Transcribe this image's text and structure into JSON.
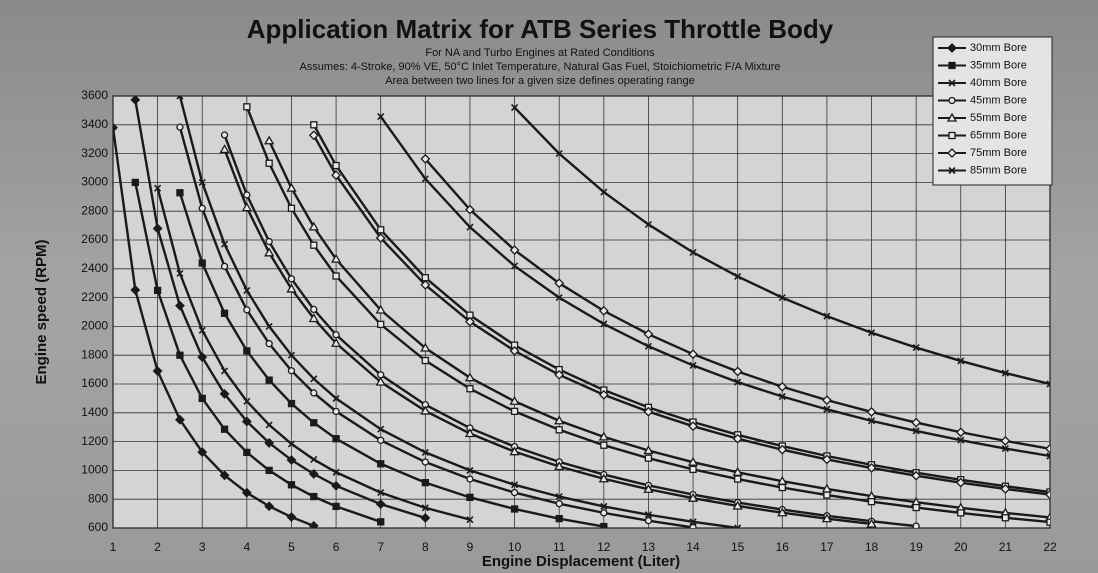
{
  "chart_data": {
    "type": "line",
    "title": "Application Matrix for ATB Series Throttle Body",
    "subtitle_lines": [
      "For NA and Turbo Engines at Rated Conditions",
      "Assumes: 4-Stroke, 90% VE, 50°C Inlet Temperature, Natural Gas Fuel, Stoichiometric F/A Mixture",
      "Area between two lines for a given size defines operating range"
    ],
    "xlabel": "Engine Displacement (Liter)",
    "ylabel": "Engine speed (RPM)",
    "xlim": [
      1,
      22
    ],
    "ylim": [
      600,
      3600
    ],
    "xticks": [
      1,
      2,
      3,
      4,
      5,
      6,
      7,
      8,
      9,
      10,
      11,
      12,
      13,
      14,
      15,
      16,
      17,
      18,
      19,
      20,
      21,
      22
    ],
    "yticks": [
      600,
      800,
      1000,
      1200,
      1400,
      1600,
      1800,
      2000,
      2200,
      2400,
      2600,
      2800,
      3000,
      3200,
      3400,
      3600
    ],
    "grid": true,
    "legend": "top-right",
    "x": [
      1,
      1.5,
      2,
      2.5,
      3,
      3.5,
      4,
      4.5,
      5,
      5.5,
      6,
      7,
      8,
      9,
      10,
      11,
      12,
      13,
      14,
      15,
      16,
      17,
      18,
      19,
      20,
      21,
      22
    ],
    "series": [
      {
        "name": "30mm Bore",
        "color": "#1a1a1a",
        "marker": "diamond",
        "filled": true,
        "curves": [
          [
            3380,
            2253,
            1690,
            1352,
            1127,
            966,
            845,
            751,
            676,
            615,
            null,
            null,
            null,
            null,
            null,
            null,
            null,
            null,
            null,
            null,
            null,
            null,
            null,
            null,
            null,
            null,
            null
          ],
          [
            null,
            3573,
            2680,
            2144,
            1787,
            1531,
            1340,
            1191,
            1072,
            975,
            893,
            766,
            670,
            null,
            null,
            null,
            null,
            null,
            null,
            null,
            null,
            null,
            null,
            null,
            null,
            null,
            null
          ]
        ]
      },
      {
        "name": "35mm Bore",
        "color": "#1a1a1a",
        "marker": "square",
        "filled": true,
        "curves": [
          [
            null,
            3000,
            2250,
            1800,
            1500,
            1286,
            1125,
            1000,
            900,
            818,
            750,
            643,
            null,
            null,
            null,
            null,
            null,
            null,
            null,
            null,
            null,
            null,
            null,
            null,
            null,
            null,
            null
          ],
          [
            null,
            null,
            null,
            2928,
            2440,
            2091,
            1830,
            1627,
            1464,
            1331,
            1220,
            1046,
            915,
            813,
            732,
            665,
            610,
            null,
            null,
            null,
            null,
            null,
            null,
            null,
            null,
            null,
            null
          ]
        ]
      },
      {
        "name": "40mm Bore",
        "color": "#1a1a1a",
        "marker": "x",
        "filled": false,
        "curves": [
          [
            null,
            null,
            2960,
            2368,
            1973,
            1691,
            1480,
            1316,
            1184,
            1076,
            987,
            846,
            740,
            658,
            null,
            null,
            null,
            null,
            null,
            null,
            null,
            null,
            null,
            null,
            null,
            null,
            null
          ],
          [
            null,
            null,
            null,
            3600,
            3000,
            2571,
            2250,
            2000,
            1800,
            1636,
            1500,
            1286,
            1125,
            1000,
            900,
            818,
            750,
            692,
            643,
            600,
            null,
            null,
            null,
            null,
            null,
            null,
            null
          ]
        ]
      },
      {
        "name": "45mm Bore",
        "color": "#1a1a1a",
        "marker": "circle",
        "filled": false,
        "curves": [
          [
            null,
            null,
            null,
            3384,
            2820,
            2417,
            2115,
            1880,
            1692,
            1538,
            1410,
            1209,
            1058,
            940,
            846,
            769,
            705,
            651,
            604,
            null,
            null,
            null,
            null,
            null,
            null,
            null,
            null
          ],
          [
            null,
            null,
            null,
            null,
            null,
            3329,
            2913,
            2589,
            2330,
            2118,
            1942,
            1664,
            1456,
            1294,
            1165,
            1059,
            971,
            896,
            832,
            777,
            728,
            685,
            647,
            613,
            null,
            null,
            null
          ]
        ]
      },
      {
        "name": "55mm Bore",
        "color": "#1a1a1a",
        "marker": "triangle",
        "filled": false,
        "curves": [
          [
            null,
            null,
            null,
            null,
            null,
            3229,
            2825,
            2511,
            2260,
            2055,
            1883,
            1614,
            1413,
            1256,
            1130,
            1027,
            942,
            869,
            807,
            753,
            706,
            665,
            628,
            null,
            null,
            null,
            null
          ],
          [
            null,
            null,
            null,
            null,
            null,
            null,
            null,
            3289,
            2960,
            2691,
            2467,
            2114,
            1850,
            1644,
            1480,
            1345,
            1233,
            1138,
            1057,
            987,
            925,
            871,
            822,
            779,
            740,
            705,
            673
          ]
        ]
      },
      {
        "name": "65mm Bore",
        "color": "#1a1a1a",
        "marker": "square",
        "filled": false,
        "curves": [
          [
            null,
            null,
            null,
            null,
            null,
            null,
            3525,
            3133,
            2820,
            2564,
            2350,
            2014,
            1763,
            1567,
            1410,
            1282,
            1175,
            1085,
            1007,
            940,
            881,
            829,
            783,
            742,
            705,
            671,
            641
          ],
          [
            null,
            null,
            null,
            null,
            null,
            null,
            null,
            null,
            null,
            3400,
            3117,
            2671,
            2338,
            2078,
            1870,
            1700,
            1558,
            1438,
            1336,
            1247,
            1169,
            1100,
            1039,
            984,
            935,
            890,
            850
          ]
        ]
      },
      {
        "name": "75mm Bore",
        "color": "#1a1a1a",
        "marker": "diamond",
        "filled": false,
        "curves": [
          [
            null,
            null,
            null,
            null,
            null,
            null,
            null,
            null,
            null,
            3327,
            3050,
            2614,
            2288,
            2033,
            1830,
            1664,
            1525,
            1408,
            1307,
            1220,
            1144,
            1076,
            1017,
            963,
            915,
            871,
            832
          ],
          [
            null,
            null,
            null,
            null,
            null,
            null,
            null,
            null,
            null,
            null,
            null,
            null,
            3163,
            2811,
            2530,
            2300,
            2108,
            1946,
            1807,
            1687,
            1581,
            1488,
            1406,
            1332,
            1265,
            1205,
            1150
          ]
        ]
      },
      {
        "name": "85mm Bore",
        "color": "#1a1a1a",
        "marker": "x",
        "filled": false,
        "curves": [
          [
            null,
            null,
            null,
            null,
            null,
            null,
            null,
            null,
            null,
            null,
            null,
            3457,
            3025,
            2689,
            2420,
            2200,
            2017,
            1862,
            1729,
            1613,
            1513,
            1424,
            1344,
            1274,
            1210,
            1152,
            1100
          ],
          [
            null,
            null,
            null,
            null,
            null,
            null,
            null,
            null,
            null,
            null,
            null,
            null,
            null,
            null,
            3520,
            3200,
            2933,
            2708,
            2514,
            2347,
            2200,
            2071,
            1956,
            1853,
            1760,
            1676,
            1600
          ]
        ]
      }
    ]
  }
}
